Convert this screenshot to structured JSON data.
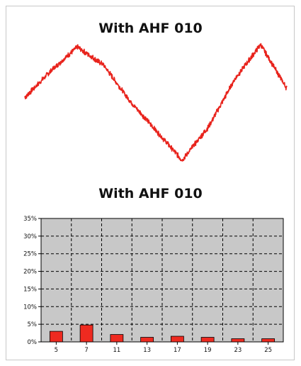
{
  "chart_data": [
    {
      "type": "line",
      "title": "With AHF 010",
      "xlabel": "",
      "ylabel": "",
      "series": [
        {
          "x": [
            0,
            10,
            20,
            30,
            40,
            50,
            60,
            70,
            80,
            90,
            100
          ],
          "values": [
            0.1,
            0.55,
            0.95,
            0.65,
            0.05,
            -0.45,
            -0.95,
            -0.4,
            0.4,
            0.99,
            0.25
          ]
        }
      ],
      "ylim": [
        -1,
        1
      ],
      "grid": false,
      "line_color": "#e8231c"
    },
    {
      "type": "bar",
      "title": "With AHF 010",
      "categories": [
        "5",
        "7",
        "11",
        "13",
        "17",
        "19",
        "23",
        "25"
      ],
      "values": [
        3.0,
        4.8,
        2.1,
        1.3,
        1.6,
        1.3,
        0.9,
        0.9
      ],
      "ylim": [
        0,
        35
      ],
      "y_ticks": [
        "0%",
        "5%",
        "10%",
        "15%",
        "20%",
        "25%",
        "30%",
        "35%"
      ],
      "grid": true,
      "bar_color": "#ee2a20",
      "plot_background": "#c8c8c8"
    }
  ]
}
